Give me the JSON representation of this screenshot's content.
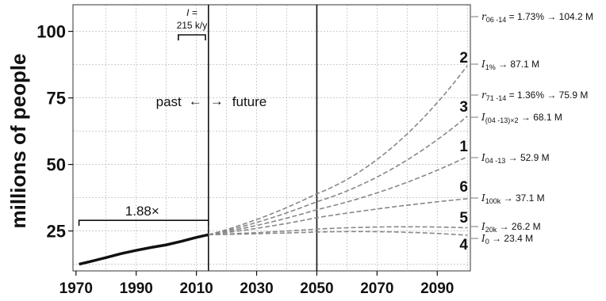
{
  "chart_data": {
    "type": "line",
    "title": "",
    "xlabel": "",
    "ylabel": "millions of people",
    "xlim": [
      1969,
      2101
    ],
    "ylim": [
      10,
      110
    ],
    "xticks": [
      1970,
      1990,
      2010,
      2030,
      2050,
      2070,
      2090
    ],
    "yticks": [
      25,
      50,
      75,
      100
    ],
    "xtick_labels": [
      "1970",
      "1990",
      "2010",
      "2030",
      "2050",
      "2070",
      "2090"
    ],
    "ytick_labels": [
      "25",
      "50",
      "75",
      "100"
    ],
    "grid": true,
    "vlines": [
      2014,
      2050
    ],
    "past_series": {
      "x": [
        1971,
        1975,
        1980,
        1985,
        1990,
        1995,
        2000,
        2005,
        2010,
        2014
      ],
      "y": [
        12.5,
        13.6,
        15.0,
        16.5,
        17.7,
        18.8,
        19.8,
        21.1,
        22.6,
        23.6
      ]
    },
    "projections": [
      {
        "scenario": "2",
        "label": "I",
        "sub": "1%",
        "arrow": "→",
        "value_text": "87.1 M",
        "end": 87.1
      },
      {
        "scenario": "3",
        "label": "I",
        "sub": "(04 -13)×2",
        "arrow": "→",
        "value_text": "68.1 M",
        "end": 68.1
      },
      {
        "scenario": "1",
        "label": "I",
        "sub": "04 -13",
        "arrow": "→",
        "value_text": "52.9 M",
        "end": 52.9
      },
      {
        "scenario": "6",
        "label": "I",
        "sub": "100k",
        "arrow": "→",
        "value_text": "37.1 M",
        "end": 37.1
      },
      {
        "scenario": "5",
        "label": "I",
        "sub": "20k",
        "arrow": "→",
        "value_text": "26.2 M",
        "end": 26.2
      },
      {
        "scenario": "4",
        "label": "I",
        "sub": "0",
        "arrow": "→",
        "value_text": "23.4 M",
        "end": 23.4
      }
    ],
    "right_refs": [
      {
        "label": "r",
        "sub": "06 -14",
        "text": " = 1.73% → 104.2 M",
        "value": 104.2
      },
      {
        "label": "r",
        "sub": "71 -14",
        "text": " = 1.36% → 75.9 M",
        "value": 75.9
      }
    ],
    "annotations": {
      "ratio": "1.88×",
      "past": "past",
      "future": "future",
      "arrow_left": "←",
      "arrow_right": "→",
      "inc_label_line1": "I =",
      "inc_label_line2": "215 k/y"
    },
    "colors": {
      "past": "#111111",
      "projection": "#888888",
      "grid": "#bbbbbb"
    }
  }
}
